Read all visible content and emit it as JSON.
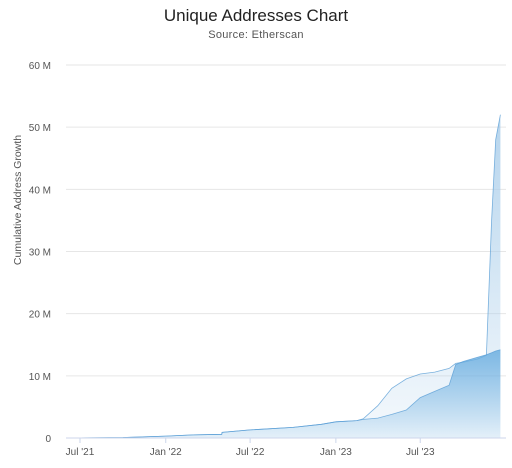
{
  "chart_data": {
    "type": "area",
    "title": "Unique Addresses Chart",
    "subtitle": "Source: Etherscan",
    "xlabel": "",
    "ylabel": "Cumulative Address Growth",
    "ylim": [
      0,
      60000000
    ],
    "yticks": [
      {
        "value": 0,
        "label": "0"
      },
      {
        "value": 10000000,
        "label": "10 M"
      },
      {
        "value": 20000000,
        "label": "20 M"
      },
      {
        "value": 30000000,
        "label": "30 M"
      },
      {
        "value": 40000000,
        "label": "40 M"
      },
      {
        "value": 50000000,
        "label": "50 M"
      },
      {
        "value": 60000000,
        "label": "60 M"
      }
    ],
    "xlim": [
      "2021-06-01",
      "2024-01-01"
    ],
    "xticks": [
      {
        "value": "2021-07-01",
        "label": "Jul '21"
      },
      {
        "value": "2022-01-01",
        "label": "Jan '22"
      },
      {
        "value": "2022-07-01",
        "label": "Jul '22"
      },
      {
        "value": "2023-01-01",
        "label": "Jan '23"
      },
      {
        "value": "2023-07-01",
        "label": "Jul '23"
      }
    ],
    "grid": true,
    "colors": {
      "series_a": "#a9cdea",
      "series_b": "#6aaee0",
      "line": "#5b9fd6"
    },
    "series": [
      {
        "fill": "series_a",
        "x": [
          "2021-06-01",
          "2021-10-01",
          "2022-01-01",
          "2022-03-01",
          "2022-05-01",
          "2022-05-02",
          "2022-07-01",
          "2022-10-01",
          "2022-12-01",
          "2023-01-01",
          "2023-02-15",
          "2023-03-01",
          "2023-04-01",
          "2023-05-01",
          "2023-06-01",
          "2023-07-01",
          "2023-08-01",
          "2023-09-01",
          "2023-09-15",
          "2023-10-01",
          "2023-11-01",
          "2023-11-20",
          "2023-12-01",
          "2023-12-10",
          "2023-12-20"
        ],
        "values": [
          0,
          80000,
          300000,
          500000,
          600000,
          900000,
          1300000,
          1700000,
          2200000,
          2600000,
          2800000,
          3100000,
          5200000,
          8000000,
          9500000,
          10300000,
          10600000,
          11200000,
          12000000,
          12200000,
          12700000,
          13300000,
          35000000,
          48000000,
          52000000
        ]
      },
      {
        "fill": "series_b",
        "x": [
          "2021-06-01",
          "2021-10-01",
          "2022-01-01",
          "2022-03-01",
          "2022-05-01",
          "2022-05-02",
          "2022-07-01",
          "2022-10-01",
          "2022-12-01",
          "2023-01-01",
          "2023-02-15",
          "2023-03-01",
          "2023-04-01",
          "2023-05-01",
          "2023-06-01",
          "2023-07-01",
          "2023-08-01",
          "2023-09-01",
          "2023-09-15",
          "2023-10-01",
          "2023-11-01",
          "2023-11-20",
          "2023-12-01",
          "2023-12-10",
          "2023-12-20"
        ],
        "values": [
          0,
          80000,
          300000,
          500000,
          600000,
          900000,
          1300000,
          1700000,
          2200000,
          2600000,
          2800000,
          3000000,
          3200000,
          3800000,
          4500000,
          6500000,
          7500000,
          8500000,
          11800000,
          12300000,
          13000000,
          13400000,
          13700000,
          14000000,
          14200000
        ]
      }
    ]
  }
}
